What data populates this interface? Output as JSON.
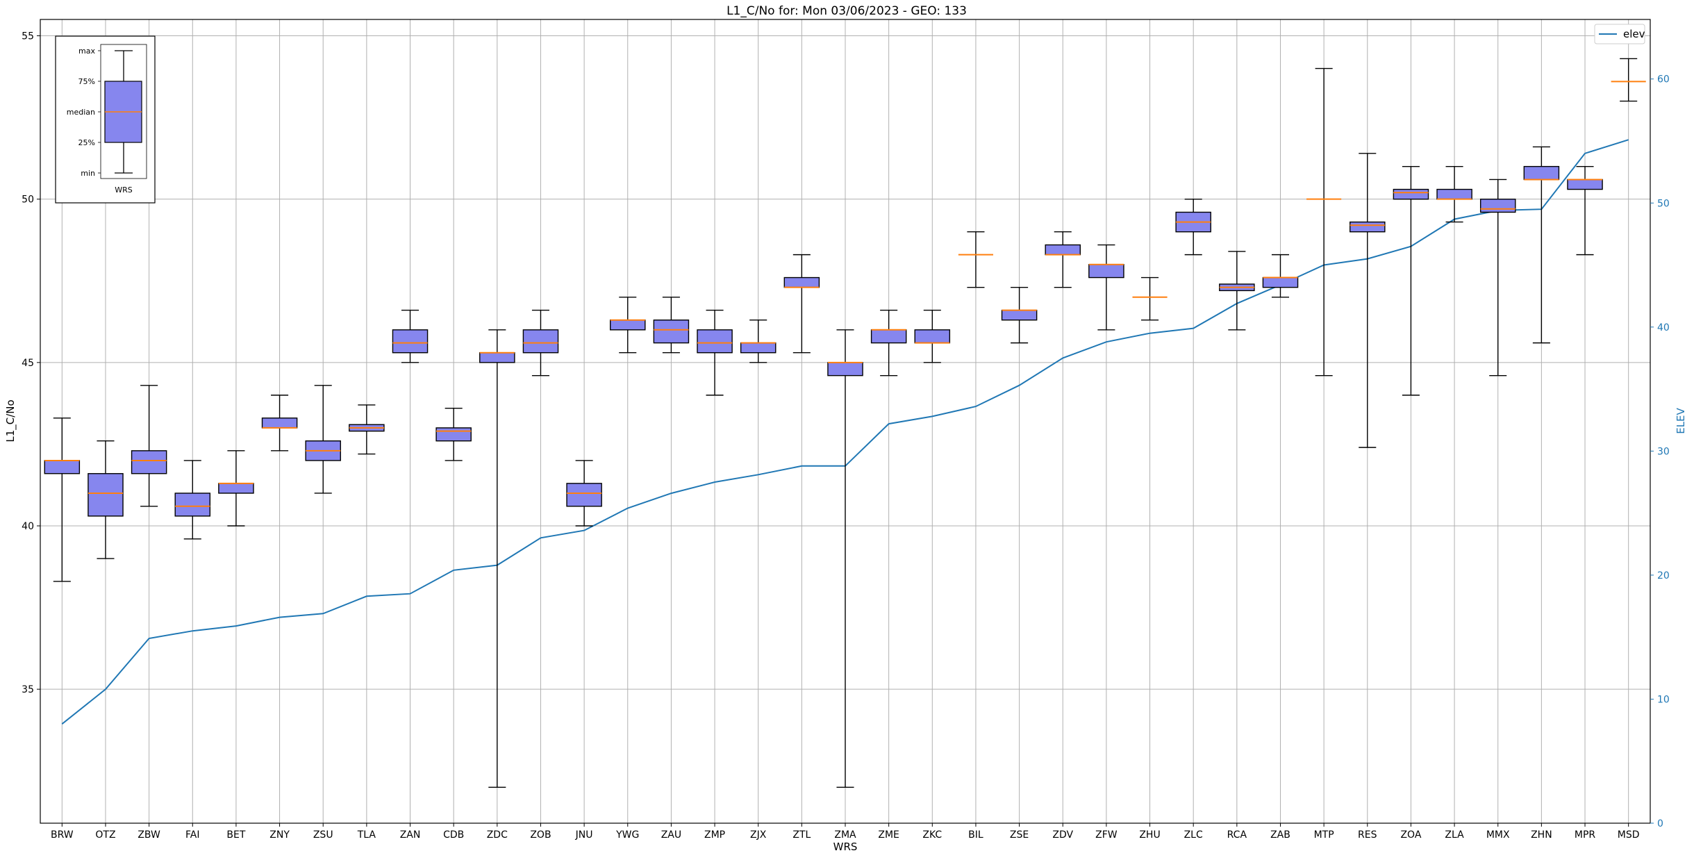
{
  "chart_data": {
    "type": "box",
    "title": "L1_C/No for: Mon 03/06/2023 - GEO: 133",
    "xlabel": "WRS",
    "ylabel": "L1_C/No",
    "y2label": "ELEV",
    "ylim": [
      30.9,
      55.5
    ],
    "y2lim": [
      0,
      64.8
    ],
    "yticks": [
      35,
      40,
      45,
      50,
      55
    ],
    "y2ticks": [
      0,
      10,
      20,
      30,
      40,
      50,
      60
    ],
    "grid": true,
    "legend": {
      "position": "top-right",
      "entries": [
        {
          "label": "elev",
          "color": "#1f77b4"
        }
      ]
    },
    "colors": {
      "box_fill": "#8686ee",
      "median": "#ff7f0e",
      "elev_line": "#1f77b4"
    },
    "categories": [
      "BRW",
      "OTZ",
      "ZBW",
      "FAI",
      "BET",
      "ZNY",
      "ZSU",
      "TLA",
      "ZAN",
      "CDB",
      "ZDC",
      "ZOB",
      "JNU",
      "YWG",
      "ZAU",
      "ZMP",
      "ZJX",
      "ZTL",
      "ZMA",
      "ZME",
      "ZKC",
      "BIL",
      "ZSE",
      "ZDV",
      "ZFW",
      "ZHU",
      "ZLC",
      "RCA",
      "ZAB",
      "MTP",
      "RES",
      "ZOA",
      "ZLA",
      "MMX",
      "ZHN",
      "MPR",
      "MSD"
    ],
    "boxes": [
      {
        "min": 38.3,
        "q1": 41.6,
        "median": 42.0,
        "q3": 42.0,
        "max": 43.3
      },
      {
        "min": 39.0,
        "q1": 40.3,
        "median": 41.0,
        "q3": 41.6,
        "max": 42.6
      },
      {
        "min": 40.6,
        "q1": 41.6,
        "median": 42.0,
        "q3": 42.3,
        "max": 44.3
      },
      {
        "min": 39.6,
        "q1": 40.3,
        "median": 40.6,
        "q3": 41.0,
        "max": 42.0
      },
      {
        "min": 40.0,
        "q1": 41.0,
        "median": 41.3,
        "q3": 41.3,
        "max": 42.3
      },
      {
        "min": 42.3,
        "q1": 43.0,
        "median": 43.0,
        "q3": 43.3,
        "max": 44.0
      },
      {
        "min": 41.0,
        "q1": 42.0,
        "median": 42.3,
        "q3": 42.6,
        "max": 44.3
      },
      {
        "min": 42.2,
        "q1": 42.9,
        "median": 43.0,
        "q3": 43.1,
        "max": 43.7
      },
      {
        "min": 45.0,
        "q1": 45.3,
        "median": 45.6,
        "q3": 46.0,
        "max": 46.6
      },
      {
        "min": 42.0,
        "q1": 42.6,
        "median": 42.9,
        "q3": 43.0,
        "max": 43.6
      },
      {
        "min": 32.0,
        "q1": 45.0,
        "median": 45.3,
        "q3": 45.3,
        "max": 46.0
      },
      {
        "min": 44.6,
        "q1": 45.3,
        "median": 45.6,
        "q3": 46.0,
        "max": 46.6
      },
      {
        "min": 40.0,
        "q1": 40.6,
        "median": 41.0,
        "q3": 41.3,
        "max": 42.0
      },
      {
        "min": 45.3,
        "q1": 46.0,
        "median": 46.3,
        "q3": 46.3,
        "max": 47.0
      },
      {
        "min": 45.3,
        "q1": 45.6,
        "median": 46.0,
        "q3": 46.3,
        "max": 47.0
      },
      {
        "min": 44.0,
        "q1": 45.3,
        "median": 45.6,
        "q3": 46.0,
        "max": 46.6
      },
      {
        "min": 45.0,
        "q1": 45.3,
        "median": 45.6,
        "q3": 45.6,
        "max": 46.3
      },
      {
        "min": 45.3,
        "q1": 47.3,
        "median": 47.3,
        "q3": 47.6,
        "max": 48.3
      },
      {
        "min": 32.0,
        "q1": 44.6,
        "median": 45.0,
        "q3": 45.0,
        "max": 46.0
      },
      {
        "min": 44.6,
        "q1": 45.6,
        "median": 46.0,
        "q3": 46.0,
        "max": 46.6
      },
      {
        "min": 45.0,
        "q1": 45.6,
        "median": 45.6,
        "q3": 46.0,
        "max": 46.6
      },
      {
        "min": 47.3,
        "q1": 48.3,
        "median": 48.3,
        "q3": 48.3,
        "max": 49.0
      },
      {
        "min": 45.6,
        "q1": 46.3,
        "median": 46.6,
        "q3": 46.6,
        "max": 47.3
      },
      {
        "min": 47.3,
        "q1": 48.3,
        "median": 48.3,
        "q3": 48.6,
        "max": 49.0
      },
      {
        "min": 46.0,
        "q1": 47.6,
        "median": 48.0,
        "q3": 48.0,
        "max": 48.6
      },
      {
        "min": 46.3,
        "q1": 47.0,
        "median": 47.0,
        "q3": 47.0,
        "max": 47.6
      },
      {
        "min": 48.3,
        "q1": 49.0,
        "median": 49.3,
        "q3": 49.6,
        "max": 50.0
      },
      {
        "min": 46.0,
        "q1": 47.2,
        "median": 47.3,
        "q3": 47.4,
        "max": 48.4
      },
      {
        "min": 47.0,
        "q1": 47.3,
        "median": 47.6,
        "q3": 47.6,
        "max": 48.3
      },
      {
        "min": 44.6,
        "q1": 50.0,
        "median": 50.0,
        "q3": 50.0,
        "max": 54.0
      },
      {
        "min": 42.4,
        "q1": 49.0,
        "median": 49.2,
        "q3": 49.3,
        "max": 51.4
      },
      {
        "min": 44.0,
        "q1": 50.0,
        "median": 50.2,
        "q3": 50.3,
        "max": 51.0
      },
      {
        "min": 49.3,
        "q1": 50.0,
        "median": 50.0,
        "q3": 50.3,
        "max": 51.0
      },
      {
        "min": 44.6,
        "q1": 49.6,
        "median": 49.7,
        "q3": 50.0,
        "max": 50.6
      },
      {
        "min": 45.6,
        "q1": 50.6,
        "median": 50.6,
        "q3": 51.0,
        "max": 51.6
      },
      {
        "min": 48.3,
        "q1": 50.3,
        "median": 50.6,
        "q3": 50.6,
        "max": 51.0
      },
      {
        "min": 53.0,
        "q1": 53.6,
        "median": 53.6,
        "q3": 53.6,
        "max": 54.3
      }
    ],
    "elev_series": {
      "name": "elev",
      "values": [
        8.0,
        10.8,
        14.9,
        15.5,
        15.9,
        16.6,
        16.9,
        18.3,
        18.5,
        20.4,
        20.8,
        23.0,
        23.6,
        25.4,
        26.6,
        27.5,
        28.1,
        28.8,
        28.8,
        32.2,
        32.8,
        33.6,
        35.3,
        37.5,
        38.8,
        39.5,
        39.9,
        41.9,
        43.4,
        45.0,
        45.5,
        46.5,
        48.7,
        49.4,
        49.5,
        54.0,
        55.1
      ]
    },
    "inset_legend": {
      "labels": [
        "max",
        "75%",
        "median",
        "25%",
        "min"
      ],
      "xlabel": "WRS"
    }
  }
}
